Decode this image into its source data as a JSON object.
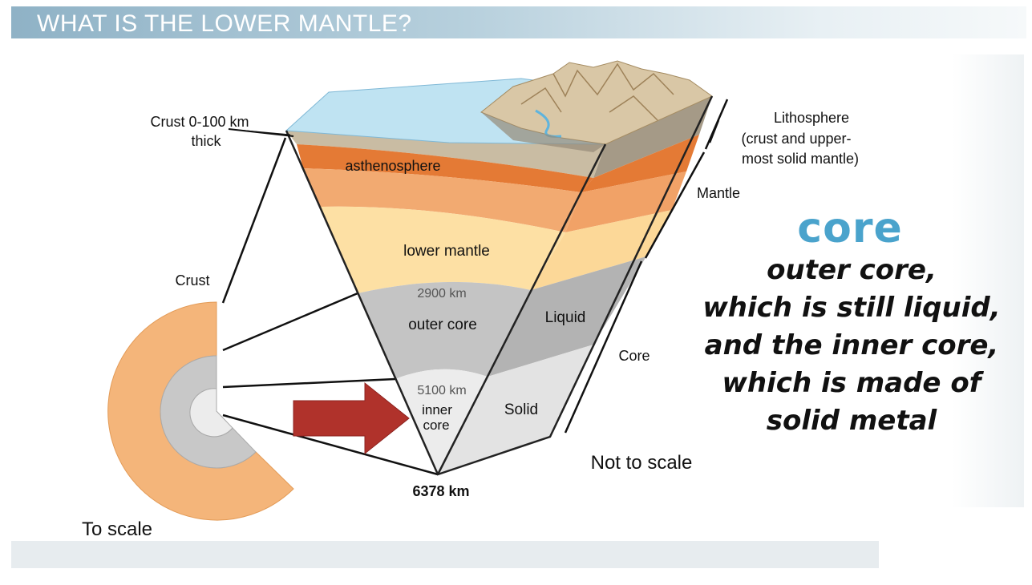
{
  "header": {
    "title": "WHAT IS THE LOWER MANTLE?"
  },
  "labels": {
    "crust_thickness_1": "Crust 0-100 km",
    "crust_thickness_2": "thick",
    "lithosphere_1": "Lithosphere",
    "lithosphere_2": "(crust and upper-",
    "lithosphere_3": "most solid mantle)",
    "mantle": "Mantle",
    "asthenosphere": "asthenosphere",
    "lower_mantle": "lower mantle",
    "crust": "Crust",
    "depth_2900": "2900 km",
    "outer_core": "outer core",
    "liquid": "Liquid",
    "core": "Core",
    "depth_5100": "5100 km",
    "inner_core_1": "inner",
    "inner_core_2": "core",
    "solid": "Solid",
    "not_to_scale": "Not to scale",
    "depth_6378": "6378 km",
    "to_scale": "To scale"
  },
  "side_text": {
    "heading": "core",
    "lines": [
      "outer core,",
      "which is still liquid,",
      "and the inner core,",
      "which is made of",
      "solid metal"
    ]
  },
  "colors": {
    "title_bar": "#8fb2c6",
    "heading_blue": "#4aa3cc",
    "arrow_red": "#b0322b",
    "asthenosphere": "#e98a45",
    "lower_mantle": "#fde0a4",
    "outer_core": "#c4c4c4",
    "inner_core": "#e6e6e6",
    "ocean": "#bfe3f2"
  }
}
